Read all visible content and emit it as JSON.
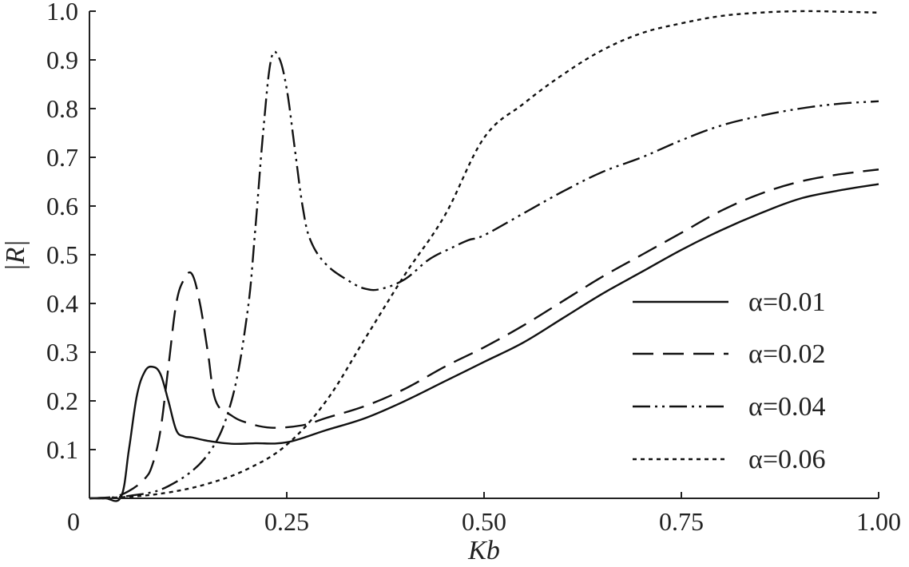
{
  "chart_data": {
    "type": "line",
    "xlabel": "Kb",
    "ylabel": "|R|",
    "xlim": [
      0,
      1.0
    ],
    "ylim": [
      0,
      1.0
    ],
    "x_ticks": [
      {
        "value": 0,
        "label": "0"
      },
      {
        "value": 0.25,
        "label": "0.25"
      },
      {
        "value": 0.5,
        "label": "0.50"
      },
      {
        "value": 0.75,
        "label": "0.75"
      },
      {
        "value": 1.0,
        "label": "1.00"
      }
    ],
    "y_ticks": [
      {
        "value": 0.1,
        "label": "0.1"
      },
      {
        "value": 0.2,
        "label": "0.2"
      },
      {
        "value": 0.3,
        "label": "0.3"
      },
      {
        "value": 0.4,
        "label": "0.4"
      },
      {
        "value": 0.5,
        "label": "0.5"
      },
      {
        "value": 0.6,
        "label": "0.6"
      },
      {
        "value": 0.7,
        "label": "0.7"
      },
      {
        "value": 0.8,
        "label": "0.8"
      },
      {
        "value": 0.9,
        "label": "0.9"
      },
      {
        "value": 1.0,
        "label": "1.0"
      }
    ],
    "grid": false,
    "legend_position": "right-center",
    "series": [
      {
        "name": "α=0.01",
        "dash": "solid",
        "x": [
          0.0,
          0.02,
          0.04,
          0.05,
          0.06,
          0.07,
          0.08,
          0.09,
          0.1,
          0.11,
          0.12,
          0.13,
          0.15,
          0.18,
          0.21,
          0.25,
          0.3,
          0.35,
          0.4,
          0.45,
          0.5,
          0.55,
          0.6,
          0.65,
          0.7,
          0.75,
          0.8,
          0.85,
          0.9,
          0.95,
          1.0
        ],
        "y": [
          0.0,
          0.0,
          0.003,
          0.1,
          0.21,
          0.26,
          0.27,
          0.255,
          0.2,
          0.14,
          0.127,
          0.125,
          0.118,
          0.112,
          0.113,
          0.115,
          0.14,
          0.165,
          0.2,
          0.24,
          0.28,
          0.32,
          0.37,
          0.42,
          0.465,
          0.51,
          0.55,
          0.585,
          0.615,
          0.632,
          0.645
        ]
      },
      {
        "name": "α=0.02",
        "dash": "dashed",
        "x": [
          0.0,
          0.03,
          0.05,
          0.07,
          0.08,
          0.09,
          0.1,
          0.11,
          0.12,
          0.13,
          0.14,
          0.15,
          0.16,
          0.18,
          0.2,
          0.23,
          0.27,
          0.3,
          0.35,
          0.4,
          0.45,
          0.5,
          0.55,
          0.6,
          0.65,
          0.7,
          0.75,
          0.8,
          0.85,
          0.9,
          0.95,
          1.0
        ],
        "y": [
          0.0,
          0.003,
          0.015,
          0.04,
          0.07,
          0.14,
          0.27,
          0.4,
          0.45,
          0.46,
          0.4,
          0.3,
          0.2,
          0.17,
          0.155,
          0.145,
          0.15,
          0.165,
          0.19,
          0.225,
          0.27,
          0.31,
          0.355,
          0.405,
          0.455,
          0.5,
          0.545,
          0.59,
          0.625,
          0.65,
          0.665,
          0.675
        ]
      },
      {
        "name": "α=0.04",
        "dash": "dash-dot-dot",
        "x": [
          0.0,
          0.05,
          0.1,
          0.15,
          0.18,
          0.2,
          0.21,
          0.22,
          0.23,
          0.24,
          0.25,
          0.26,
          0.27,
          0.28,
          0.3,
          0.33,
          0.35,
          0.37,
          0.4,
          0.43,
          0.46,
          0.48,
          0.5,
          0.55,
          0.6,
          0.65,
          0.7,
          0.75,
          0.8,
          0.85,
          0.9,
          0.95,
          1.0
        ],
        "y": [
          0.0,
          0.005,
          0.025,
          0.09,
          0.2,
          0.38,
          0.55,
          0.75,
          0.9,
          0.905,
          0.84,
          0.72,
          0.6,
          0.53,
          0.48,
          0.445,
          0.43,
          0.43,
          0.45,
          0.49,
          0.515,
          0.53,
          0.54,
          0.585,
          0.63,
          0.67,
          0.7,
          0.735,
          0.765,
          0.785,
          0.8,
          0.81,
          0.815
        ]
      },
      {
        "name": "α=0.06",
        "dash": "dotted",
        "x": [
          0.0,
          0.05,
          0.1,
          0.15,
          0.2,
          0.25,
          0.3,
          0.35,
          0.4,
          0.45,
          0.5,
          0.55,
          0.6,
          0.65,
          0.7,
          0.75,
          0.8,
          0.85,
          0.9,
          0.95,
          1.0
        ],
        "y": [
          0.0,
          0.003,
          0.012,
          0.03,
          0.06,
          0.11,
          0.2,
          0.33,
          0.46,
          0.58,
          0.74,
          0.81,
          0.87,
          0.92,
          0.955,
          0.975,
          0.99,
          0.997,
          1.0,
          0.999,
          0.997
        ]
      }
    ]
  }
}
